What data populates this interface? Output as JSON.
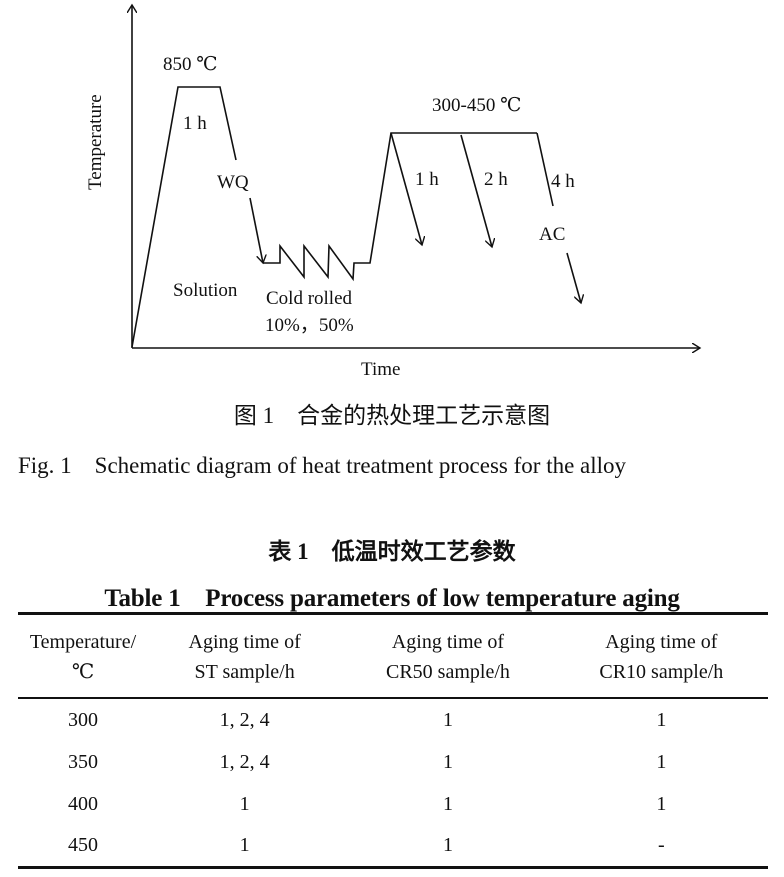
{
  "figure": {
    "y_axis_label": "Temperature",
    "x_axis_label": "Time",
    "labels": {
      "solution_temp": "850 ℃",
      "solution_hold": "1 h",
      "quench": "WQ",
      "solution": "Solution",
      "cold_rolled": "Cold rolled",
      "reduction": "10%，50%",
      "aging_temp": "300-450 ℃",
      "aging_1h": "1 h",
      "aging_2h": "2 h",
      "aging_4h": "4 h",
      "air_cool": "AC"
    },
    "caption_cn": "图 1　合金的热处理工艺示意图",
    "caption_en": "Fig. 1　Schematic diagram of heat treatment process for the alloy"
  },
  "table": {
    "caption_cn": "表 1　低温时效工艺参数",
    "caption_en": "Table 1　Process parameters of low temperature aging",
    "headers": [
      [
        "Temperature/",
        "℃"
      ],
      [
        "Aging time of",
        "ST sample/h"
      ],
      [
        "Aging time of",
        "CR50 sample/h"
      ],
      [
        "Aging time of",
        "CR10 sample/h"
      ]
    ],
    "rows": [
      [
        "300",
        "1, 2, 4",
        "1",
        "1"
      ],
      [
        "350",
        "1, 2, 4",
        "1",
        "1"
      ],
      [
        "400",
        "1",
        "1",
        "1"
      ],
      [
        "450",
        "1",
        "1",
        "-"
      ]
    ]
  }
}
